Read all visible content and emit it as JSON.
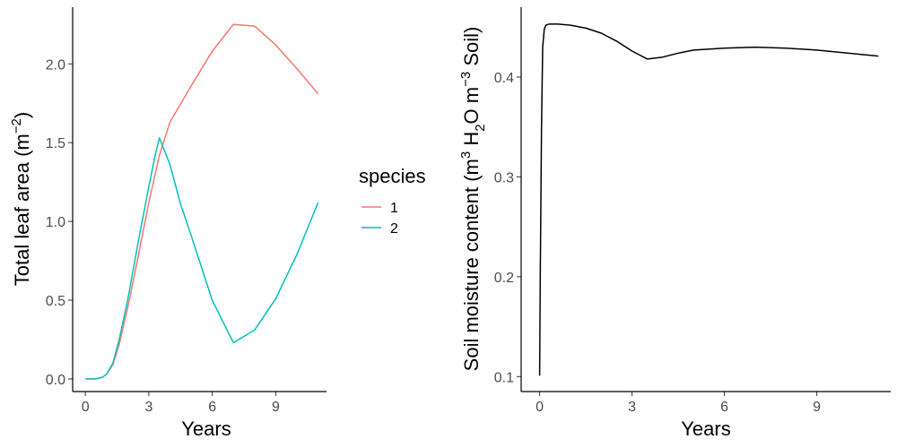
{
  "chart_data": [
    {
      "type": "line",
      "xlabel": "Years",
      "ylabel": {
        "text": "Total leaf area (m",
        "sup": "−2",
        "close": ")"
      },
      "xlim": [
        -0.6,
        11.4
      ],
      "ylim": [
        -0.08,
        2.36
      ],
      "xticks": [
        0,
        3,
        6,
        9
      ],
      "yticks": [
        0.0,
        0.5,
        1.0,
        1.5,
        2.0
      ],
      "xtick_labels": [
        "0",
        "3",
        "6",
        "9"
      ],
      "ytick_labels": [
        "0.0",
        "0.5",
        "1.0",
        "1.5",
        "2.0"
      ],
      "legend": {
        "title": "species",
        "placement": "right"
      },
      "series": [
        {
          "name": "1",
          "color": "#F8766D",
          "x": [
            0,
            0.5,
            0.8,
            1.0,
            1.3,
            1.6,
            2.0,
            2.5,
            3.0,
            3.5,
            4.0,
            5.0,
            6.0,
            7.0,
            8.0,
            9.0,
            10.0,
            11.0
          ],
          "y": [
            0.0,
            0.0,
            0.01,
            0.03,
            0.09,
            0.22,
            0.45,
            0.78,
            1.12,
            1.42,
            1.63,
            1.86,
            2.08,
            2.25,
            2.24,
            2.12,
            1.97,
            1.81
          ]
        },
        {
          "name": "2",
          "color": "#00BFC4",
          "x": [
            0,
            0.5,
            0.8,
            1.0,
            1.3,
            1.6,
            2.0,
            2.5,
            3.0,
            3.3,
            3.5,
            4.0,
            4.5,
            5.0,
            6.0,
            7.0,
            8.0,
            9.0,
            10.0,
            11.0
          ],
          "y": [
            0.0,
            0.0,
            0.01,
            0.03,
            0.1,
            0.25,
            0.5,
            0.87,
            1.22,
            1.42,
            1.53,
            1.36,
            1.11,
            0.91,
            0.5,
            0.23,
            0.31,
            0.51,
            0.79,
            1.12
          ]
        }
      ]
    },
    {
      "type": "line",
      "xlabel": "Years",
      "ylabel": {
        "pre": "Soil moisture content (m",
        "sup1": "3",
        "mid1": " H",
        "sub": "2",
        "mid2": "O m",
        "sup2": "−3",
        "post": " Soil)"
      },
      "xlim": [
        -0.6,
        11.4
      ],
      "ylim": [
        0.085,
        0.47
      ],
      "xticks": [
        0,
        3,
        6,
        9
      ],
      "yticks": [
        0.1,
        0.2,
        0.3,
        0.4
      ],
      "xtick_labels": [
        "0",
        "3",
        "6",
        "9"
      ],
      "ytick_labels": [
        "0.1",
        "0.2",
        "0.3",
        "0.4"
      ],
      "series": [
        {
          "color": "#000000",
          "x": [
            0.0,
            0.02,
            0.06,
            0.1,
            0.15,
            0.2,
            0.3,
            0.6,
            1.0,
            1.5,
            2.0,
            2.5,
            3.0,
            3.5,
            4.0,
            4.5,
            5.0,
            6.0,
            7.0,
            8.0,
            9.0,
            10.0,
            11.0
          ],
          "y": [
            0.101,
            0.2,
            0.35,
            0.43,
            0.448,
            0.452,
            0.453,
            0.453,
            0.452,
            0.449,
            0.444,
            0.436,
            0.426,
            0.418,
            0.42,
            0.424,
            0.427,
            0.429,
            0.43,
            0.429,
            0.427,
            0.424,
            0.421
          ]
        }
      ]
    }
  ]
}
